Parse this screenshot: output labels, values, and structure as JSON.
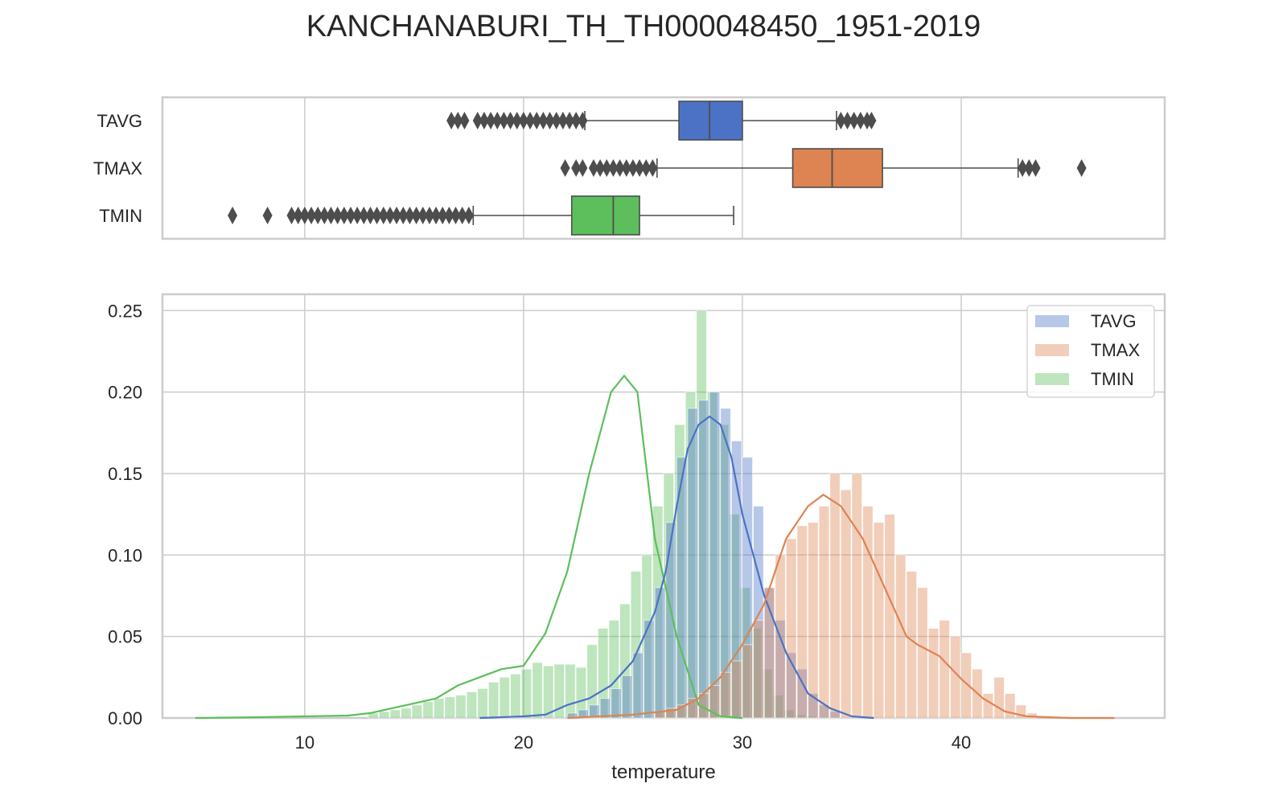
{
  "figure": {
    "title": "KANCHANABURI_TH_TH000048450_1951-2019"
  },
  "colors": {
    "TAVG": "#4c72c6",
    "TMAX": "#dd8452",
    "TMIN": "#5cbf5c",
    "grid": "#cccccc",
    "frame": "#cccccc",
    "outlier": "#4d4d4d"
  },
  "chart_data": [
    {
      "type": "box",
      "categories": [
        "TAVG",
        "TMAX",
        "TMIN"
      ],
      "xlim": [
        3.5,
        49.3
      ],
      "grid": true,
      "boxes": [
        {
          "name": "TAVG",
          "whisker_low": 22.8,
          "q1": 27.1,
          "median": 28.5,
          "q3": 30.0,
          "whisker_high": 34.3,
          "outliers": [
            16.7,
            17.0,
            17.3,
            17.9,
            18.2,
            18.5,
            18.8,
            19.1,
            19.4,
            19.7,
            20.0,
            20.3,
            20.6,
            20.9,
            21.2,
            21.5,
            21.8,
            22.1,
            22.4,
            22.7,
            34.5,
            34.8,
            35.1,
            35.4,
            35.7,
            35.9
          ]
        },
        {
          "name": "TMAX",
          "whisker_low": 26.1,
          "q1": 32.3,
          "median": 34.1,
          "q3": 36.4,
          "whisker_high": 42.6,
          "outliers": [
            21.9,
            22.4,
            22.7,
            23.2,
            23.5,
            23.8,
            24.1,
            24.4,
            24.7,
            25.0,
            25.3,
            25.6,
            25.9,
            42.8,
            43.1,
            43.4,
            45.5
          ]
        },
        {
          "name": "TMIN",
          "whisker_low": 17.7,
          "q1": 22.2,
          "median": 24.1,
          "q3": 25.3,
          "whisker_high": 29.6,
          "outliers": [
            6.7,
            8.3,
            9.4,
            9.7,
            10.0,
            10.3,
            10.6,
            10.9,
            11.2,
            11.5,
            11.8,
            12.1,
            12.4,
            12.7,
            13.0,
            13.3,
            13.6,
            13.9,
            14.2,
            14.5,
            14.8,
            15.1,
            15.4,
            15.7,
            16.0,
            16.3,
            16.6,
            16.9,
            17.2,
            17.5
          ]
        }
      ]
    },
    {
      "type": "histogram",
      "xlabel": "temperature",
      "ylabel": "",
      "xlim": [
        3.5,
        49.3
      ],
      "ylim": [
        0,
        0.26
      ],
      "xticks": [
        10,
        20,
        30,
        40
      ],
      "yticks": [
        "0.00",
        "0.05",
        "0.10",
        "0.15",
        "0.20",
        "0.25"
      ],
      "legend": {
        "position": "top-right",
        "entries": [
          "TAVG",
          "TMAX",
          "TMIN"
        ]
      },
      "grid": true,
      "series": [
        {
          "name": "TMIN",
          "bins_start": 12.9,
          "bin_width": 0.5,
          "values": [
            0.003,
            0.004,
            0.005,
            0.006,
            0.008,
            0.01,
            0.012,
            0.013,
            0.014,
            0.016,
            0.018,
            0.022,
            0.025,
            0.027,
            0.03,
            0.034,
            0.032,
            0.033,
            0.033,
            0.031,
            0.045,
            0.055,
            0.06,
            0.07,
            0.09,
            0.1,
            0.13,
            0.15,
            0.18,
            0.2,
            0.25,
            0.2,
            0.18,
            0.125,
            0.08,
            0.055,
            0.03,
            0.014,
            0.005,
            0.002,
            0.001
          ],
          "kde_x": [
            5,
            8,
            10,
            12,
            13,
            14,
            15,
            16,
            17,
            18,
            19,
            20,
            21,
            22,
            23,
            24,
            24.6,
            25.2,
            26,
            27,
            28,
            29,
            30
          ],
          "kde_y": [
            0.0,
            0.0005,
            0.001,
            0.0015,
            0.003,
            0.006,
            0.009,
            0.012,
            0.02,
            0.025,
            0.03,
            0.032,
            0.052,
            0.09,
            0.15,
            0.2,
            0.21,
            0.2,
            0.11,
            0.05,
            0.008,
            0.001,
            0.0
          ]
        },
        {
          "name": "TAVG",
          "bins_start": 22.0,
          "bin_width": 0.5,
          "values": [
            0.003,
            0.005,
            0.008,
            0.012,
            0.018,
            0.026,
            0.04,
            0.06,
            0.08,
            0.12,
            0.16,
            0.19,
            0.195,
            0.2,
            0.19,
            0.17,
            0.16,
            0.13,
            0.08,
            0.06,
            0.04,
            0.03,
            0.015,
            0.008,
            0.004
          ],
          "kde_x": [
            18,
            20,
            21,
            22,
            23,
            24,
            25,
            26,
            26.5,
            27,
            27.5,
            28,
            28.5,
            29,
            29.5,
            30,
            31,
            32,
            33,
            34,
            35,
            36
          ],
          "kde_y": [
            0.0,
            0.001,
            0.002,
            0.008,
            0.012,
            0.02,
            0.035,
            0.065,
            0.09,
            0.13,
            0.165,
            0.18,
            0.185,
            0.18,
            0.16,
            0.125,
            0.075,
            0.04,
            0.015,
            0.006,
            0.001,
            0.0
          ]
        },
        {
          "name": "TMAX",
          "bins_start": 26.0,
          "bin_width": 0.5,
          "values": [
            0.004,
            0.006,
            0.008,
            0.012,
            0.015,
            0.02,
            0.028,
            0.035,
            0.045,
            0.06,
            0.08,
            0.1,
            0.11,
            0.118,
            0.12,
            0.13,
            0.15,
            0.14,
            0.15,
            0.13,
            0.12,
            0.125,
            0.1,
            0.09,
            0.08,
            0.055,
            0.06,
            0.05,
            0.04,
            0.03,
            0.015,
            0.025,
            0.015,
            0.008,
            0.003
          ],
          "kde_x": [
            22,
            25,
            27,
            28,
            29,
            30,
            31,
            32,
            33,
            33.7,
            34.5,
            35.5,
            36.5,
            37.5,
            38,
            39,
            40,
            41,
            42,
            43,
            45,
            47
          ],
          "kde_y": [
            0.0,
            0.002,
            0.005,
            0.012,
            0.025,
            0.045,
            0.07,
            0.11,
            0.13,
            0.137,
            0.13,
            0.11,
            0.08,
            0.05,
            0.045,
            0.038,
            0.024,
            0.012,
            0.004,
            0.001,
            0.0,
            0.0
          ]
        }
      ]
    }
  ]
}
